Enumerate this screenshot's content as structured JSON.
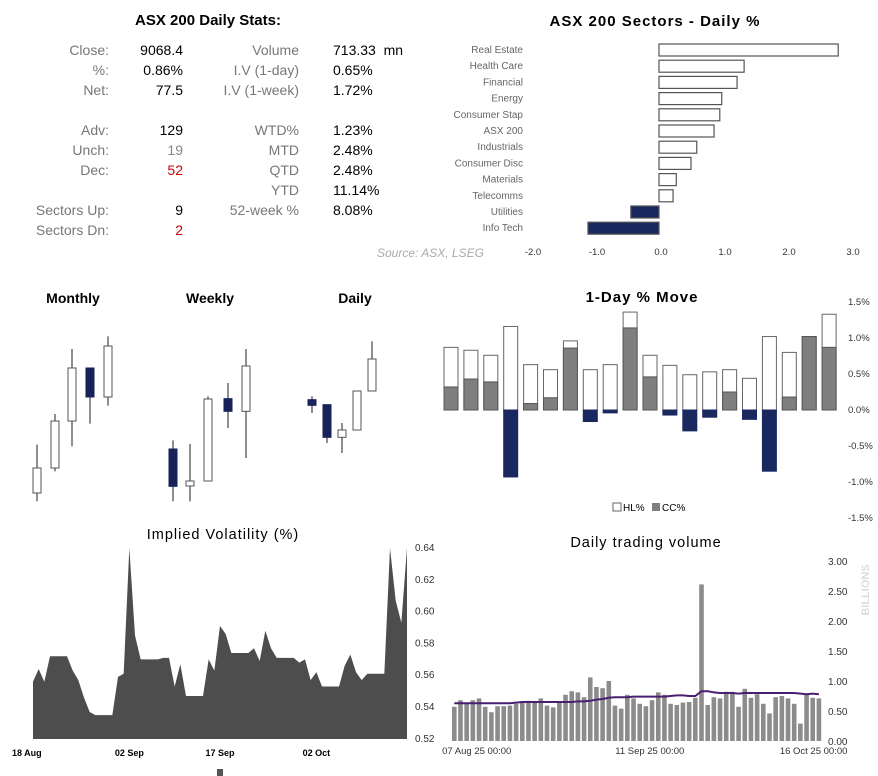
{
  "stats": {
    "title": "ASX 200 Daily Stats:",
    "left": [
      {
        "label": "Close:",
        "value": "9068.4",
        "color": "#000000"
      },
      {
        "label": "%:",
        "value": "0.86%",
        "color": "#000000"
      },
      {
        "label": "Net:",
        "value": "77.5",
        "color": "#000000"
      },
      {
        "label": "Adv:",
        "value": "129",
        "color": "#000000"
      },
      {
        "label": "Unch:",
        "value": "19",
        "color": "#888888"
      },
      {
        "label": "Dec:",
        "value": "52",
        "color": "#cc0000"
      },
      {
        "label": "Sectors Up:",
        "value": "9",
        "color": "#000000"
      },
      {
        "label": "Sectors Dn:",
        "value": "2",
        "color": "#cc0000"
      }
    ],
    "right": [
      {
        "label": "Volume",
        "value": "713.33  mn"
      },
      {
        "label": "I.V (1-day)",
        "value": "0.65%"
      },
      {
        "label": "I.V (1-week)",
        "value": "1.72%"
      },
      {
        "label": "WTD%",
        "value": "1.23%"
      },
      {
        "label": "MTD",
        "value": "2.48%"
      },
      {
        "label": "QTD",
        "value": "2.48%"
      },
      {
        "label": "YTD",
        "value": "11.14%"
      },
      {
        "label": "52-week %",
        "value": "8.08%"
      }
    ],
    "source": "Source: ASX, LSEG"
  },
  "chart_data": [
    {
      "type": "bar",
      "orientation": "horizontal",
      "title": "ASX 200 Sectors - Daily %",
      "categories": [
        "Real Estate",
        "Health Care",
        "Financial",
        "Energy",
        "Consumer Stap",
        "ASX 200",
        "Industrials",
        "Consumer Disc",
        "Materials",
        "Telecomms",
        "Utilities",
        "Info Tech"
      ],
      "values": [
        2.8,
        1.33,
        1.22,
        0.98,
        0.95,
        0.86,
        0.59,
        0.5,
        0.27,
        0.22,
        -0.44,
        -1.11
      ],
      "xlim": [
        -2.0,
        3.0
      ],
      "xticks": [
        "-2.0",
        "-1.0",
        "0.0",
        "1.0",
        "2.0",
        "3.0"
      ],
      "colors": {
        "positive": "#ffffff",
        "negative": "#1a2860"
      },
      "grid": false
    },
    {
      "type": "candlestick",
      "panels": [
        {
          "title": "Monthly",
          "ohlc": [
            [
              60,
              205,
              35,
              135
            ],
            [
              135,
              297,
              125,
              276
            ],
            [
              276,
              492,
              200,
              435
            ],
            [
              435,
              435,
              268,
              348
            ],
            [
              348,
              530,
              322,
              501
            ]
          ]
        },
        {
          "title": "Weekly",
          "ohlc": [
            [
              192,
              218,
              35,
              80
            ],
            [
              81,
              207,
              35,
              96
            ],
            [
              96,
              350,
              96,
              342
            ],
            [
              343,
              390,
              255,
              305
            ],
            [
              305,
              492,
              165,
              441
            ]
          ]
        },
        {
          "title": "Daily",
          "ohlc": [
            [
              340,
              350,
              300,
              323
            ],
            [
              325,
              325,
              210,
              227
            ],
            [
              227,
              270,
              180,
              249
            ],
            [
              249,
              366,
              249,
              366
            ],
            [
              366,
              515,
              366,
              462
            ]
          ]
        }
      ],
      "colors": {
        "up": "#ffffff",
        "down": "#162258"
      }
    },
    {
      "type": "bar",
      "title": "1-Day % Move",
      "series": [
        {
          "name": "HL%",
          "values": [
            0.87,
            0.83,
            0.76,
            1.16,
            0.63,
            0.56,
            0.96,
            0.56,
            0.63,
            1.36,
            0.76,
            0.62,
            0.49,
            0.53,
            0.56,
            0.44,
            1.02,
            0.8,
            1.02,
            1.33
          ],
          "color": "#ffffff"
        },
        {
          "name": "CC%",
          "values": [
            0.32,
            0.43,
            0.39,
            -0.93,
            0.09,
            0.17,
            0.86,
            -0.16,
            -0.04,
            1.14,
            0.46,
            -0.07,
            -0.29,
            -0.1,
            0.25,
            -0.13,
            -0.85,
            0.18,
            1.02,
            0.87
          ],
          "color": "#7f7f7f",
          "negative_color": "#1a2860"
        }
      ],
      "ylim": [
        -1.5,
        1.5
      ],
      "yticks": [
        "1.5%",
        "1.0%",
        "0.5%",
        "0.0%",
        "-0.5%",
        "-1.0%",
        "-1.5%"
      ],
      "legend": "bottom"
    },
    {
      "type": "area",
      "title": "Implied Volatility (%)",
      "values": [
        0.556,
        0.564,
        0.556,
        0.572,
        0.572,
        0.572,
        0.572,
        0.563,
        0.557,
        0.546,
        0.537,
        0.535,
        0.535,
        0.535,
        0.535,
        0.559,
        0.561,
        0.64,
        0.585,
        0.57,
        0.57,
        0.57,
        0.57,
        0.571,
        0.571,
        0.553,
        0.567,
        0.547,
        0.547,
        0.547,
        0.547,
        0.57,
        0.563,
        0.591,
        0.586,
        0.574,
        0.574,
        0.574,
        0.574,
        0.577,
        0.569,
        0.588,
        0.577,
        0.571,
        0.571,
        0.571,
        0.571,
        0.568,
        0.57,
        0.557,
        0.562,
        0.553,
        0.553,
        0.553,
        0.553,
        0.566,
        0.573,
        0.562,
        0.557,
        0.561,
        0.561,
        0.561,
        0.561,
        0.64,
        0.607,
        0.593,
        0.64
      ],
      "xticks": [
        {
          "label": "18 Aug",
          "index": 0
        },
        {
          "label": "02 Sep",
          "index": 17
        },
        {
          "label": "17 Sep",
          "index": 33
        },
        {
          "label": "02 Oct",
          "index": 50
        }
      ],
      "ylim": [
        0.52,
        0.64
      ],
      "yticks": [
        "0.64",
        "0.62",
        "0.60",
        "0.58",
        "0.56",
        "0.54",
        "0.52"
      ],
      "color": "#4d4d4d"
    },
    {
      "type": "bar",
      "title": "Daily trading volume",
      "ylabel": "BILLIONS",
      "values": [
        0.57,
        0.68,
        0.62,
        0.68,
        0.71,
        0.57,
        0.48,
        0.58,
        0.58,
        0.59,
        0.62,
        0.65,
        0.67,
        0.65,
        0.71,
        0.59,
        0.56,
        0.65,
        0.77,
        0.83,
        0.81,
        0.73,
        1.06,
        0.9,
        0.88,
        1.0,
        0.59,
        0.54,
        0.77,
        0.71,
        0.62,
        0.58,
        0.68,
        0.81,
        0.77,
        0.62,
        0.6,
        0.64,
        0.65,
        0.72,
        2.61,
        0.6,
        0.73,
        0.71,
        0.82,
        0.82,
        0.57,
        0.87,
        0.72,
        0.78,
        0.62,
        0.46,
        0.73,
        0.75,
        0.71,
        0.62,
        0.29,
        0.78,
        0.72,
        0.71
      ],
      "average_line": [
        0.63,
        0.63,
        0.63,
        0.63,
        0.63,
        0.63,
        0.63,
        0.63,
        0.63,
        0.63,
        0.64,
        0.65,
        0.65,
        0.65,
        0.65,
        0.65,
        0.65,
        0.65,
        0.65,
        0.65,
        0.66,
        0.66,
        0.67,
        0.69,
        0.7,
        0.72,
        0.73,
        0.73,
        0.73,
        0.74,
        0.74,
        0.74,
        0.74,
        0.74,
        0.74,
        0.75,
        0.76,
        0.76,
        0.75,
        0.75,
        0.83,
        0.83,
        0.81,
        0.8,
        0.8,
        0.8,
        0.79,
        0.8,
        0.8,
        0.8,
        0.8,
        0.8,
        0.8,
        0.8,
        0.8,
        0.8,
        0.79,
        0.78,
        0.79,
        0.78
      ],
      "xticks": [
        {
          "label": "07 Aug 25 00:00",
          "index": 4
        },
        {
          "label": "11 Sep 25 00:00",
          "index": 32
        },
        {
          "label": "16 Oct 25 00:00",
          "index": 59
        }
      ],
      "ylim": [
        0,
        3.0
      ],
      "yticks": [
        "3.00",
        "2.50",
        "2.00",
        "1.50",
        "1.00",
        "0.50",
        "0.00"
      ],
      "colors": {
        "bars": "#8c8c8c",
        "line": "#4b1f6f"
      }
    }
  ]
}
